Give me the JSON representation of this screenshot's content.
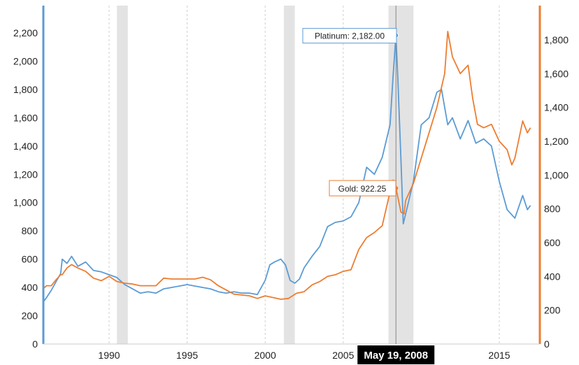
{
  "chart_data": {
    "type": "line",
    "x_range": [
      1985.8,
      2017.0
    ],
    "y_left": {
      "range": [
        0,
        2400
      ],
      "ticks": [
        0,
        200,
        400,
        600,
        800,
        1000,
        1200,
        1400,
        1600,
        1800,
        2000,
        2200
      ],
      "tick_labels": [
        "0",
        "200",
        "400",
        "600",
        "800",
        "1,000",
        "1,200",
        "1,400",
        "1,600",
        "1,800",
        "2,000",
        "2,200"
      ]
    },
    "y_right": {
      "range": [
        0,
        2000
      ],
      "ticks": [
        0,
        200,
        400,
        600,
        800,
        1000,
        1200,
        1400,
        1600,
        1800
      ],
      "tick_labels": [
        "0",
        "200",
        "400",
        "600",
        "800",
        "1,000",
        "1,200",
        "1,400",
        "1,600",
        "1,800"
      ]
    },
    "x_ticks": [
      1990,
      1995,
      2000,
      2005,
      2015
    ],
    "x_tick_labels": [
      "1990",
      "1995",
      "2000",
      "2005",
      "2015"
    ],
    "grid": "vertical-dashed",
    "recessions": [
      [
        1990.5,
        1991.2
      ],
      [
        2001.2,
        2001.9
      ],
      [
        2007.9,
        2009.5
      ]
    ],
    "colors": {
      "platinum": "#5b9bd5",
      "gold": "#ed7d31",
      "recession": "#e3e3e3",
      "left_axis": "#5b9bd5",
      "right_axis": "#ed7d31",
      "date_box": "#000000"
    },
    "series": [
      {
        "key": "platinum",
        "axis": "left",
        "points": [
          [
            1985.8,
            300
          ],
          [
            1986.0,
            330
          ],
          [
            1986.3,
            380
          ],
          [
            1986.6,
            440
          ],
          [
            1986.9,
            500
          ],
          [
            1987.0,
            600
          ],
          [
            1987.3,
            570
          ],
          [
            1987.6,
            620
          ],
          [
            1988.0,
            550
          ],
          [
            1988.5,
            580
          ],
          [
            1989.0,
            520
          ],
          [
            1989.5,
            510
          ],
          [
            1990.0,
            490
          ],
          [
            1990.5,
            470
          ],
          [
            1991.0,
            420
          ],
          [
            1991.5,
            390
          ],
          [
            1992.0,
            360
          ],
          [
            1992.5,
            370
          ],
          [
            1993.0,
            360
          ],
          [
            1993.5,
            390
          ],
          [
            1994.0,
            400
          ],
          [
            1994.5,
            410
          ],
          [
            1995.0,
            420
          ],
          [
            1995.5,
            410
          ],
          [
            1996.0,
            400
          ],
          [
            1996.5,
            390
          ],
          [
            1997.0,
            370
          ],
          [
            1997.5,
            360
          ],
          [
            1998.0,
            370
          ],
          [
            1998.5,
            360
          ],
          [
            1999.0,
            360
          ],
          [
            1999.5,
            350
          ],
          [
            2000.0,
            450
          ],
          [
            2000.3,
            560
          ],
          [
            2000.6,
            580
          ],
          [
            2001.0,
            600
          ],
          [
            2001.3,
            560
          ],
          [
            2001.6,
            450
          ],
          [
            2001.9,
            430
          ],
          [
            2002.2,
            460
          ],
          [
            2002.5,
            540
          ],
          [
            2003.0,
            620
          ],
          [
            2003.5,
            690
          ],
          [
            2004.0,
            830
          ],
          [
            2004.5,
            860
          ],
          [
            2005.0,
            870
          ],
          [
            2005.5,
            900
          ],
          [
            2006.0,
            1000
          ],
          [
            2006.5,
            1250
          ],
          [
            2007.0,
            1200
          ],
          [
            2007.5,
            1320
          ],
          [
            2008.0,
            1550
          ],
          [
            2008.2,
            1900
          ],
          [
            2008.38,
            2182
          ],
          [
            2008.5,
            1880
          ],
          [
            2008.7,
            1300
          ],
          [
            2008.85,
            850
          ],
          [
            2009.0,
            920
          ],
          [
            2009.5,
            1150
          ],
          [
            2010.0,
            1550
          ],
          [
            2010.5,
            1600
          ],
          [
            2011.0,
            1780
          ],
          [
            2011.3,
            1800
          ],
          [
            2011.7,
            1550
          ],
          [
            2012.0,
            1600
          ],
          [
            2012.5,
            1450
          ],
          [
            2013.0,
            1580
          ],
          [
            2013.5,
            1420
          ],
          [
            2014.0,
            1450
          ],
          [
            2014.5,
            1400
          ],
          [
            2015.0,
            1150
          ],
          [
            2015.5,
            950
          ],
          [
            2016.0,
            890
          ],
          [
            2016.5,
            1050
          ],
          [
            2016.8,
            950
          ],
          [
            2017.0,
            980
          ]
        ]
      },
      {
        "key": "gold",
        "axis": "right",
        "points": [
          [
            1985.8,
            330
          ],
          [
            1986.0,
            345
          ],
          [
            1986.3,
            345
          ],
          [
            1986.6,
            380
          ],
          [
            1986.9,
            410
          ],
          [
            1987.0,
            410
          ],
          [
            1987.3,
            450
          ],
          [
            1987.6,
            470
          ],
          [
            1988.0,
            450
          ],
          [
            1988.5,
            430
          ],
          [
            1989.0,
            390
          ],
          [
            1989.5,
            375
          ],
          [
            1990.0,
            400
          ],
          [
            1990.5,
            370
          ],
          [
            1991.0,
            360
          ],
          [
            1991.5,
            355
          ],
          [
            1992.0,
            345
          ],
          [
            1992.5,
            345
          ],
          [
            1993.0,
            345
          ],
          [
            1993.5,
            390
          ],
          [
            1994.0,
            385
          ],
          [
            1994.5,
            385
          ],
          [
            1995.0,
            385
          ],
          [
            1995.5,
            385
          ],
          [
            1996.0,
            395
          ],
          [
            1996.5,
            380
          ],
          [
            1997.0,
            345
          ],
          [
            1997.5,
            320
          ],
          [
            1998.0,
            295
          ],
          [
            1998.5,
            290
          ],
          [
            1999.0,
            285
          ],
          [
            1999.5,
            270
          ],
          [
            2000.0,
            285
          ],
          [
            2000.5,
            275
          ],
          [
            2001.0,
            265
          ],
          [
            2001.5,
            270
          ],
          [
            2002.0,
            300
          ],
          [
            2002.5,
            310
          ],
          [
            2003.0,
            350
          ],
          [
            2003.5,
            370
          ],
          [
            2004.0,
            400
          ],
          [
            2004.5,
            410
          ],
          [
            2005.0,
            430
          ],
          [
            2005.5,
            440
          ],
          [
            2006.0,
            560
          ],
          [
            2006.5,
            630
          ],
          [
            2007.0,
            660
          ],
          [
            2007.5,
            700
          ],
          [
            2008.0,
            900
          ],
          [
            2008.2,
            970
          ],
          [
            2008.38,
            922.25
          ],
          [
            2008.5,
            870
          ],
          [
            2008.7,
            780
          ],
          [
            2008.9,
            770
          ],
          [
            2009.0,
            850
          ],
          [
            2009.5,
            950
          ],
          [
            2010.0,
            1100
          ],
          [
            2010.5,
            1250
          ],
          [
            2011.0,
            1400
          ],
          [
            2011.5,
            1600
          ],
          [
            2011.7,
            1850
          ],
          [
            2012.0,
            1700
          ],
          [
            2012.5,
            1600
          ],
          [
            2013.0,
            1650
          ],
          [
            2013.3,
            1450
          ],
          [
            2013.6,
            1300
          ],
          [
            2014.0,
            1280
          ],
          [
            2014.5,
            1300
          ],
          [
            2015.0,
            1200
          ],
          [
            2015.5,
            1150
          ],
          [
            2015.8,
            1060
          ],
          [
            2016.0,
            1100
          ],
          [
            2016.5,
            1320
          ],
          [
            2016.8,
            1250
          ],
          [
            2017.0,
            1280
          ]
        ]
      }
    ],
    "tooltip": {
      "x": 2008.38,
      "platinum_label": "Platinum: 2,182.00",
      "platinum_value": 2182,
      "gold_label": "Gold: 922.25",
      "gold_value": 922.25,
      "date_label": "May 19, 2008"
    }
  }
}
